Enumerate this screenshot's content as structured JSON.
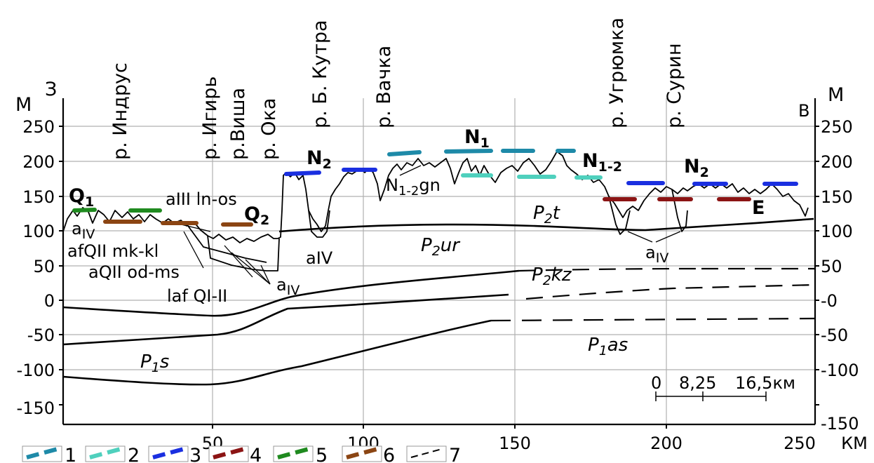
{
  "axes": {
    "left_unit": "М",
    "right_unit": "М",
    "x_unit": "КМ",
    "west_label": "З",
    "east_label": "В",
    "y_ticks": [
      "250",
      "200",
      "150",
      "100",
      "50",
      "0",
      "-50",
      "-100",
      "-150"
    ],
    "y_ticks_right": [
      "250",
      "200",
      "150",
      "100",
      "50",
      "-0",
      "-50",
      "-100",
      "-150"
    ],
    "x_ticks": [
      "50",
      "100",
      "150",
      "200",
      "250"
    ]
  },
  "rivers": [
    {
      "name": "р. Индрус"
    },
    {
      "name": "р. Игирь"
    },
    {
      "name": "р.Виша"
    },
    {
      "name": "р. Ока"
    },
    {
      "name": "р. Б. Кутра"
    },
    {
      "name": "р. Вачка"
    },
    {
      "name": "р. Угрюмка"
    },
    {
      "name": "р. Сурин"
    }
  ],
  "surface_labels": {
    "q1": {
      "main": "Q",
      "sub": "1"
    },
    "q2": {
      "main": "Q",
      "sub": "2"
    },
    "n2a": {
      "main": "N",
      "sub": "2"
    },
    "n1": {
      "main": "N",
      "sub": "1"
    },
    "n12": {
      "main": "N",
      "sub": "1-2"
    },
    "n2b": {
      "main": "N",
      "sub": "2"
    },
    "e": {
      "main": "E"
    }
  },
  "annotations": {
    "aiv_left": {
      "main": "a",
      "sub": "IV"
    },
    "aiii": "aIII ln-os",
    "afqii": "afQII mk-kl",
    "aqii": "aQII od-ms",
    "lafqi": "laf QI-II",
    "aiv_mid": {
      "main": "a",
      "sub": "IV"
    },
    "aiv_bottom": {
      "main": "aIV"
    },
    "aiv_right": {
      "main": "a",
      "sub": "IV"
    },
    "n12gn": {
      "main": "N",
      "sub": "1-2",
      "tail": "gn"
    }
  },
  "strata": [
    {
      "id": "p2t",
      "main": "P",
      "sub": "2",
      "tail": "t"
    },
    {
      "id": "p2ur",
      "main": "P",
      "sub": "2",
      "tail": "ur"
    },
    {
      "id": "p2kz",
      "main": "P",
      "sub": "2",
      "tail": "kz"
    },
    {
      "id": "p1as",
      "main": "P",
      "sub": "1",
      "tail": "as"
    },
    {
      "id": "p1s",
      "main": "P",
      "sub": "1",
      "tail": "s"
    }
  ],
  "scale_bar": {
    "labels": [
      "0",
      "8,25",
      "16,5км"
    ]
  },
  "legend": [
    {
      "num": "1",
      "color": "#1e8aa8",
      "style": "dash"
    },
    {
      "num": "2",
      "color": "#4fd0bd",
      "style": "dash"
    },
    {
      "num": "3",
      "color": "#1a2fe0",
      "style": "dash"
    },
    {
      "num": "4",
      "color": "#8b1414",
      "style": "dash"
    },
    {
      "num": "5",
      "color": "#1f8a1f",
      "style": "dash"
    },
    {
      "num": "6",
      "color": "#8b4513",
      "style": "dash"
    },
    {
      "num": "7",
      "color": "#000000",
      "style": "thin-dash"
    }
  ],
  "colors": {
    "n1": "#1e8aa8",
    "n12": "#4fd0bd",
    "n2": "#1a2fe0",
    "e": "#8b1414",
    "q1": "#1f8a1f",
    "q2": "#8b4513",
    "grid": "#b0b0b0"
  }
}
